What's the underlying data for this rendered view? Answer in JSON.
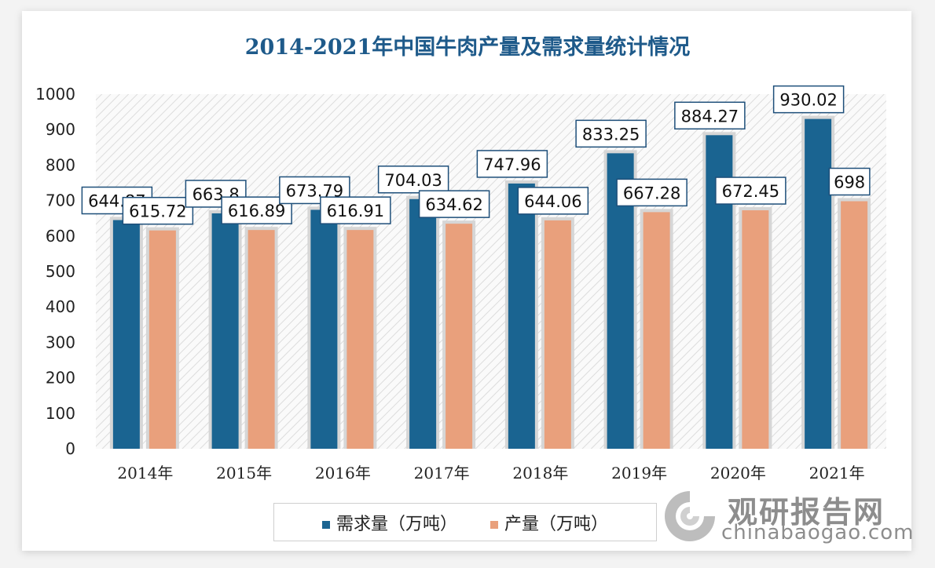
{
  "chart_data": {
    "type": "bar",
    "title": "2014-2021年中国牛肉产量及需求量统计情况",
    "categories": [
      "2014年",
      "2015年",
      "2016年",
      "2017年",
      "2018年",
      "2019年",
      "2020年",
      "2021年"
    ],
    "series": [
      {
        "name": "需求量（万吨）",
        "color": "#1a6491",
        "values": [
          644.87,
          663.8,
          673.79,
          704.03,
          747.96,
          833.25,
          884.27,
          930.02
        ]
      },
      {
        "name": "产量（万吨）",
        "color": "#e9a07c",
        "values": [
          615.72,
          616.89,
          616.91,
          634.62,
          644.06,
          667.28,
          672.45,
          698
        ]
      }
    ],
    "ylim": [
      0,
      1000
    ],
    "yticks": [
      0,
      100,
      200,
      300,
      400,
      500,
      600,
      700,
      800,
      900,
      1000
    ],
    "xlabel": "",
    "ylabel": "",
    "legend": "bottom",
    "grid": false,
    "data_labels": true
  },
  "watermark": {
    "cn": "观研报告网",
    "en": "chinabaogao.com"
  }
}
